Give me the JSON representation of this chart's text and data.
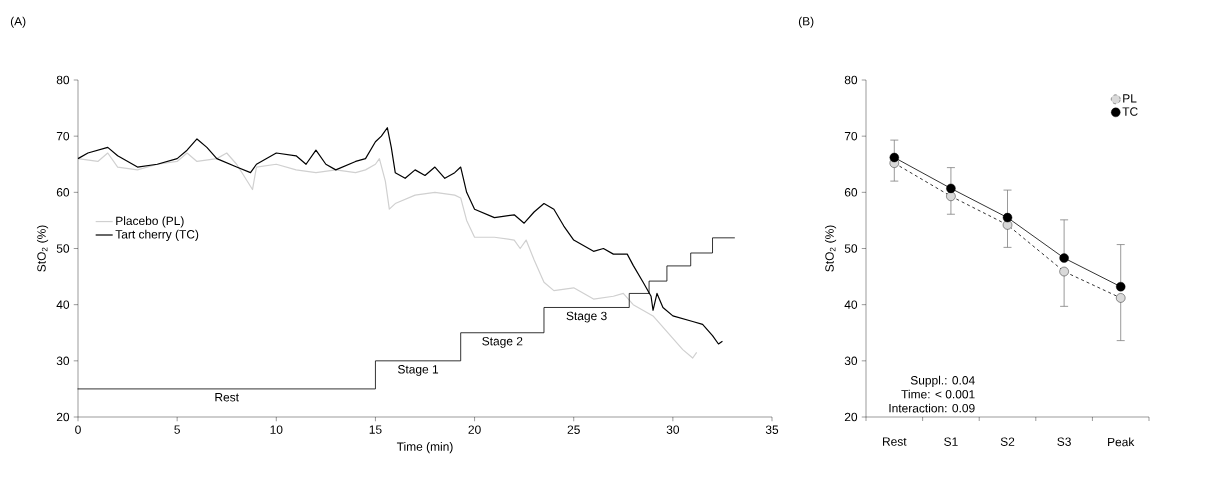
{
  "chart_data": [
    {
      "type": "line",
      "title": "(A)",
      "xlabel": "Time (min)",
      "ylabel": "StO$_{2}$ (%)",
      "xlim": [
        0,
        35
      ],
      "xticks": [
        0,
        5,
        10,
        15,
        20,
        25,
        30,
        35
      ],
      "ylim": [
        20,
        80
      ],
      "yticks": [
        20,
        30,
        40,
        50,
        60,
        70,
        80
      ],
      "legend": "left",
      "series": [
        {
          "name": "Placebo (PL)",
          "color": "#d0d0d0",
          "x": [
            0,
            1,
            1.5,
            2,
            3,
            4,
            5,
            5.5,
            6,
            7,
            7.5,
            8,
            8.8,
            9,
            10,
            11,
            12,
            13,
            14,
            14.5,
            15,
            15.2,
            15.5,
            15.7,
            16,
            17,
            18,
            19,
            19.3,
            19.6,
            20,
            21,
            22,
            22.3,
            22.6,
            23,
            23.5,
            24,
            25,
            26,
            27,
            27.5,
            28,
            29,
            30,
            30.5,
            31,
            31.2
          ],
          "values": [
            66,
            65.5,
            67,
            64.5,
            64,
            65,
            65.5,
            67,
            65.5,
            66,
            67,
            65,
            60.5,
            64.5,
            65,
            64,
            63.5,
            64,
            63.5,
            64,
            65,
            66,
            62,
            57,
            58,
            59.5,
            60,
            59.5,
            59,
            55,
            52,
            52,
            51.5,
            50,
            51.5,
            48,
            44,
            42.5,
            43,
            41,
            41.5,
            42,
            40,
            38,
            34,
            32,
            30.5,
            31.5
          ]
        },
        {
          "name": "Tart cherry (TC)",
          "color": "#000000",
          "x": [
            0,
            0.5,
            1,
            1.5,
            2,
            3,
            4,
            5,
            5.5,
            6,
            6.5,
            7,
            8,
            8.7,
            9,
            10,
            11,
            11.5,
            12,
            12.5,
            13,
            14,
            14.5,
            15,
            15.3,
            15.6,
            15.8,
            16,
            16.5,
            17,
            17.5,
            18,
            18.5,
            19,
            19.3,
            19.6,
            20,
            21,
            22,
            22.5,
            23,
            23.5,
            24,
            24.5,
            25,
            26,
            26.5,
            27,
            27.7,
            28,
            28.5,
            28.9,
            29,
            29.2,
            29.5,
            30,
            31,
            31.5,
            32,
            32.3,
            32.5
          ],
          "values": [
            66,
            67,
            67.5,
            68,
            66.5,
            64.5,
            65,
            66,
            67.5,
            69.5,
            68,
            66,
            64.5,
            63.5,
            65,
            67,
            66.5,
            65,
            67.5,
            65,
            64,
            65.5,
            66,
            69,
            70,
            71.5,
            68,
            63.5,
            62.5,
            64,
            63,
            64.5,
            62.5,
            63.5,
            64.5,
            60,
            57,
            55.5,
            56,
            54.5,
            56.5,
            58,
            57,
            54,
            51.5,
            49.5,
            50,
            49,
            49,
            47,
            44,
            41.5,
            39,
            42,
            39.5,
            38,
            37,
            36.5,
            34.5,
            33,
            33.5
          ]
        },
        {
          "type": "step",
          "color": "#000000",
          "x": [
            0,
            15,
            19.3,
            23.5,
            27.8,
            28.8,
            29.7,
            30.9,
            32,
            33.1
          ],
          "values": [
            25,
            30,
            35,
            39.5,
            42,
            44.2,
            46.9,
            49.2,
            51.9,
            51.9
          ]
        }
      ],
      "annotations": [
        "Rest",
        "Stage 1",
        "Stage 2",
        "Stage 3"
      ]
    },
    {
      "type": "line",
      "title": "(B)",
      "ylabel": "StO$_{2}$ (%)",
      "categories": [
        "Rest",
        "S1",
        "S2",
        "S3",
        "Peak"
      ],
      "ylim": [
        20,
        80
      ],
      "yticks": [
        20,
        30,
        40,
        50,
        60,
        70,
        80
      ],
      "legend": "top right",
      "marker": "circle",
      "series": [
        {
          "name": "PL",
          "color": "#d9d9d9",
          "line_style": "dashed",
          "values": [
            65.2,
            59.3,
            54.2,
            45.9,
            41.2
          ],
          "errors": [
            [
              62.0,
              65.2
            ],
            [
              56.1,
              59.3
            ],
            [
              50.2,
              54.2
            ],
            [
              39.7,
              45.9
            ],
            [
              33.6,
              41.2
            ]
          ]
        },
        {
          "name": "TC",
          "color": "#000000",
          "line_style": "solid",
          "values": [
            66.2,
            60.7,
            55.5,
            48.3,
            43.2
          ],
          "errors": [
            [
              66.2,
              69.3
            ],
            [
              60.7,
              64.4
            ],
            [
              55.5,
              60.4
            ],
            [
              48.3,
              55.1
            ],
            [
              43.2,
              50.7
            ]
          ]
        }
      ],
      "annotations": [
        "Suppl.: 0.04",
        "Time: < 0.001",
        "Interaction: 0.09"
      ]
    }
  ]
}
